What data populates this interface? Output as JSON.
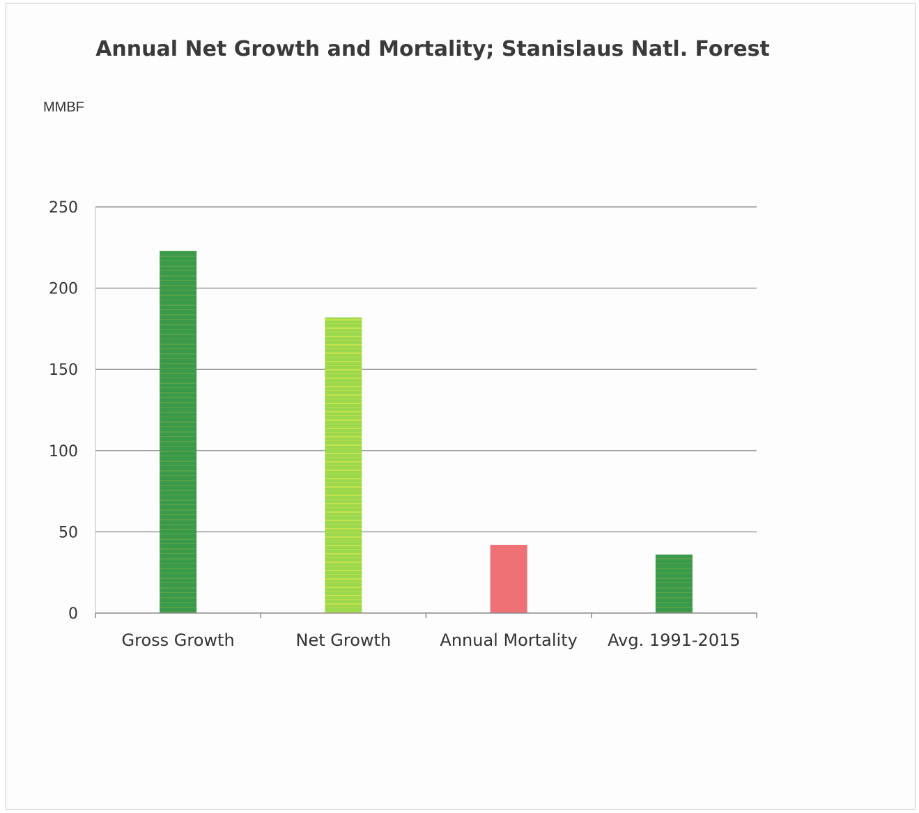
{
  "chart_data": {
    "type": "bar",
    "title": "Annual Net Growth and Mortality; Stanislaus Natl. Forest",
    "ylabel": "MMBF",
    "xlabel": "",
    "categories": [
      "Gross Growth",
      "Net Growth",
      "Annual Mortality",
      "Avg. 1991-2015"
    ],
    "values": [
      223,
      182,
      42,
      36
    ],
    "colors": [
      "#3a9a4a",
      "#9cd84e",
      "#ef7075",
      "#3a9a4a"
    ],
    "ylim": [
      0,
      250
    ],
    "yticks": [
      "0",
      "50",
      "100",
      "150",
      "200",
      "250"
    ],
    "grid": true,
    "legend": "none"
  }
}
